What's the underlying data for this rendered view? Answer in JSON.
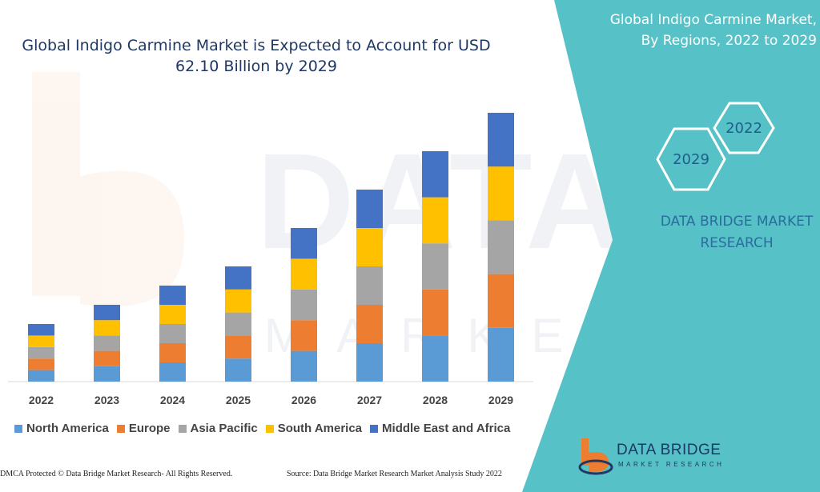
{
  "title_line1": "Global Indigo Carmine Market is Expected to Account for USD",
  "title_line2": "62.10 Billion by 2029",
  "side_title_line1": "Global Indigo Carmine Market,",
  "side_title_line2": "By Regions, 2022 to 2029",
  "hex_year_top": "2022",
  "hex_year_bottom": "2029",
  "brand_line1": "DATA BRIDGE MARKET",
  "brand_line2": "RESEARCH",
  "footer_left": "DMCA Protected © Data Bridge Market Research- All Rights Reserved.",
  "footer_right": "Source: Data Bridge Market Research Market Analysis Study 2022",
  "logo_text": "DATA BRIDGE",
  "logo_subtext": "MARKET RESEARCH",
  "colors": {
    "teal_panel": "#56c1c6",
    "title": "#1f3864",
    "north_america": "#5b9bd5",
    "europe": "#ed7d31",
    "asia_pacific": "#a5a5a5",
    "south_america": "#ffc000",
    "middle_east_africa": "#4472c4"
  },
  "chart_data": {
    "type": "bar",
    "stacked": true,
    "categories": [
      "2022",
      "2023",
      "2024",
      "2025",
      "2026",
      "2027",
      "2028",
      "2029"
    ],
    "series": [
      {
        "name": "North America",
        "color": "#5b9bd5",
        "values": [
          3.0,
          4.0,
          5.0,
          6.0,
          8.0,
          10.0,
          12.0,
          14.0
        ]
      },
      {
        "name": "Europe",
        "color": "#ed7d31",
        "values": [
          3.0,
          4.0,
          5.0,
          6.0,
          8.0,
          10.0,
          12.0,
          14.0
        ]
      },
      {
        "name": "Asia Pacific",
        "color": "#a5a5a5",
        "values": [
          3.0,
          4.0,
          5.0,
          6.0,
          8.0,
          10.0,
          12.0,
          14.0
        ]
      },
      {
        "name": "South America",
        "color": "#ffc000",
        "values": [
          3.0,
          4.0,
          5.0,
          6.0,
          8.0,
          10.0,
          12.0,
          14.0
        ]
      },
      {
        "name": "Middle East and Africa",
        "color": "#4472c4",
        "values": [
          3.0,
          4.0,
          5.0,
          6.0,
          8.0,
          10.0,
          12.0,
          14.0
        ]
      }
    ],
    "ylim": [
      0,
      75
    ],
    "legend_position": "bottom",
    "grid": false
  }
}
